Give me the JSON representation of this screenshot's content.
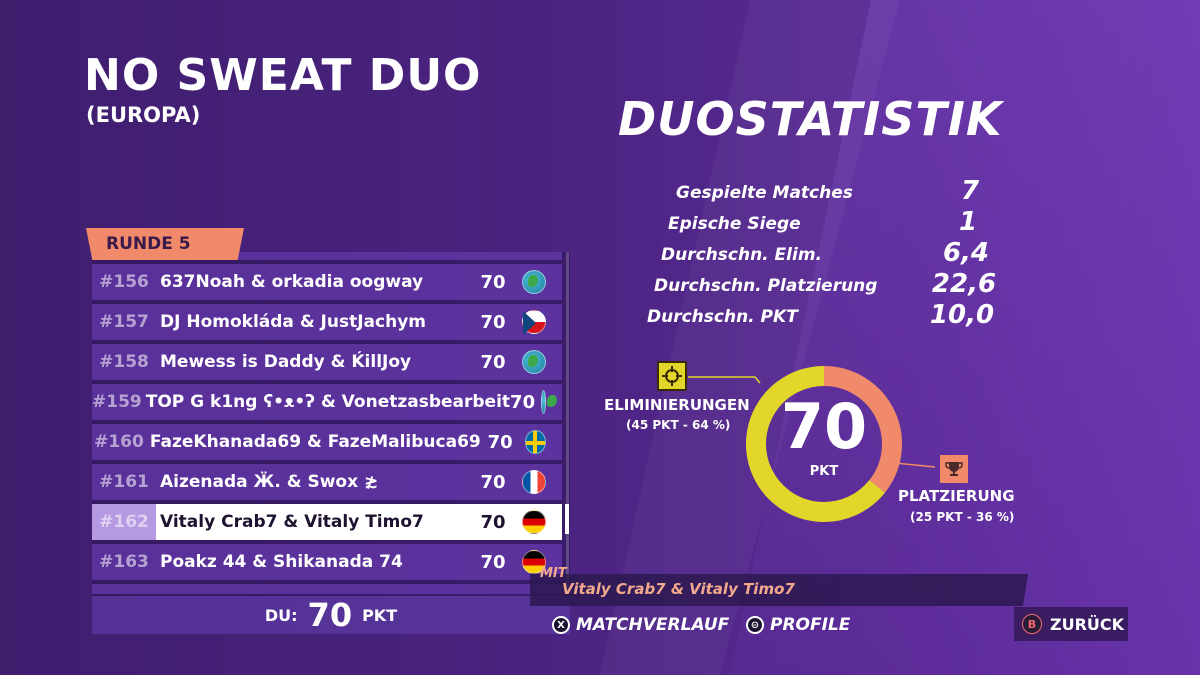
{
  "header": {
    "mode_title": "NO SWEAT DUO",
    "region": "(EUROPA)"
  },
  "leaderboard": {
    "round_label": "RUNDE 5",
    "rows": [
      {
        "rank": "#156",
        "names": "637Noah & orkadia oogway",
        "points": "70",
        "flag": "globe-icon"
      },
      {
        "rank": "#157",
        "names": "DJ Homokláda & JustJachym",
        "points": "70",
        "flag": "czech-flag-icon"
      },
      {
        "rank": "#158",
        "names": "Mewess is Daddy & ḰillJoy",
        "points": "70",
        "flag": "globe-icon"
      },
      {
        "rank": "#159",
        "names": "TOP G k1ng ʕ•ᴥ•ʔ & Vonetzasbearbeit",
        "points": "70",
        "flag": "globe-icon"
      },
      {
        "rank": "#160",
        "names": "FazeKhanada69 & FazeMalibuca69",
        "points": "70",
        "flag": "sweden-flag-icon"
      },
      {
        "rank": "#161",
        "names": "Aizenada Ӝ. & Swox ≵",
        "points": "70",
        "flag": "france-flag-icon"
      },
      {
        "rank": "#162",
        "names": "Vitaly Crab7 & Vitaly Timo7",
        "points": "70",
        "flag": "germany-flag-icon",
        "selected": true
      },
      {
        "rank": "#163",
        "names": "Poakz 44 & Shikanada 74",
        "points": "70",
        "flag": "germany-flag-icon"
      }
    ],
    "footer": {
      "label": "DU:",
      "points": "70",
      "unit": "PKT"
    }
  },
  "stats": {
    "title": "DUOSTATISTIK",
    "items": [
      {
        "label": "Gespielte Matches",
        "value": "7"
      },
      {
        "label": "Epische Siege",
        "value": "1"
      },
      {
        "label": "Durchschn. Elim.",
        "value": "6,4"
      },
      {
        "label": "Durchschn. Platzierung",
        "value": "22,6"
      },
      {
        "label": "Durchschn. PKT",
        "value": "10,0"
      }
    ]
  },
  "chart_data": {
    "type": "pie",
    "categories": [
      "ELIMINIERUNGEN",
      "PLATZIERUNG"
    ],
    "values": [
      45,
      25
    ],
    "percent": [
      64,
      36
    ],
    "total": "70",
    "total_unit": "PKT",
    "colors": [
      "#e3d62a",
      "#f08a6a"
    ],
    "legend": [
      {
        "label": "ELIMINIERUNGEN",
        "sub": "(45 PKT - 64 %)"
      },
      {
        "label": "PLATZIERUNG",
        "sub": "(25 PKT - 36 %)"
      }
    ]
  },
  "team": {
    "with_label": "MIT",
    "names": "Vitaly Crab7 & Vitaly Timo7"
  },
  "buttons": {
    "match_history": {
      "glyph": "X",
      "label": "MATCHVERLAUF"
    },
    "profile": {
      "glyph": "⊝",
      "label": "PROFILE"
    },
    "back": {
      "glyph": "B",
      "label": "ZURÜCK"
    }
  },
  "colors": {
    "accent_salmon": "#f08a6a",
    "accent_yellow": "#e3d62a",
    "background": "#4a2380"
  }
}
